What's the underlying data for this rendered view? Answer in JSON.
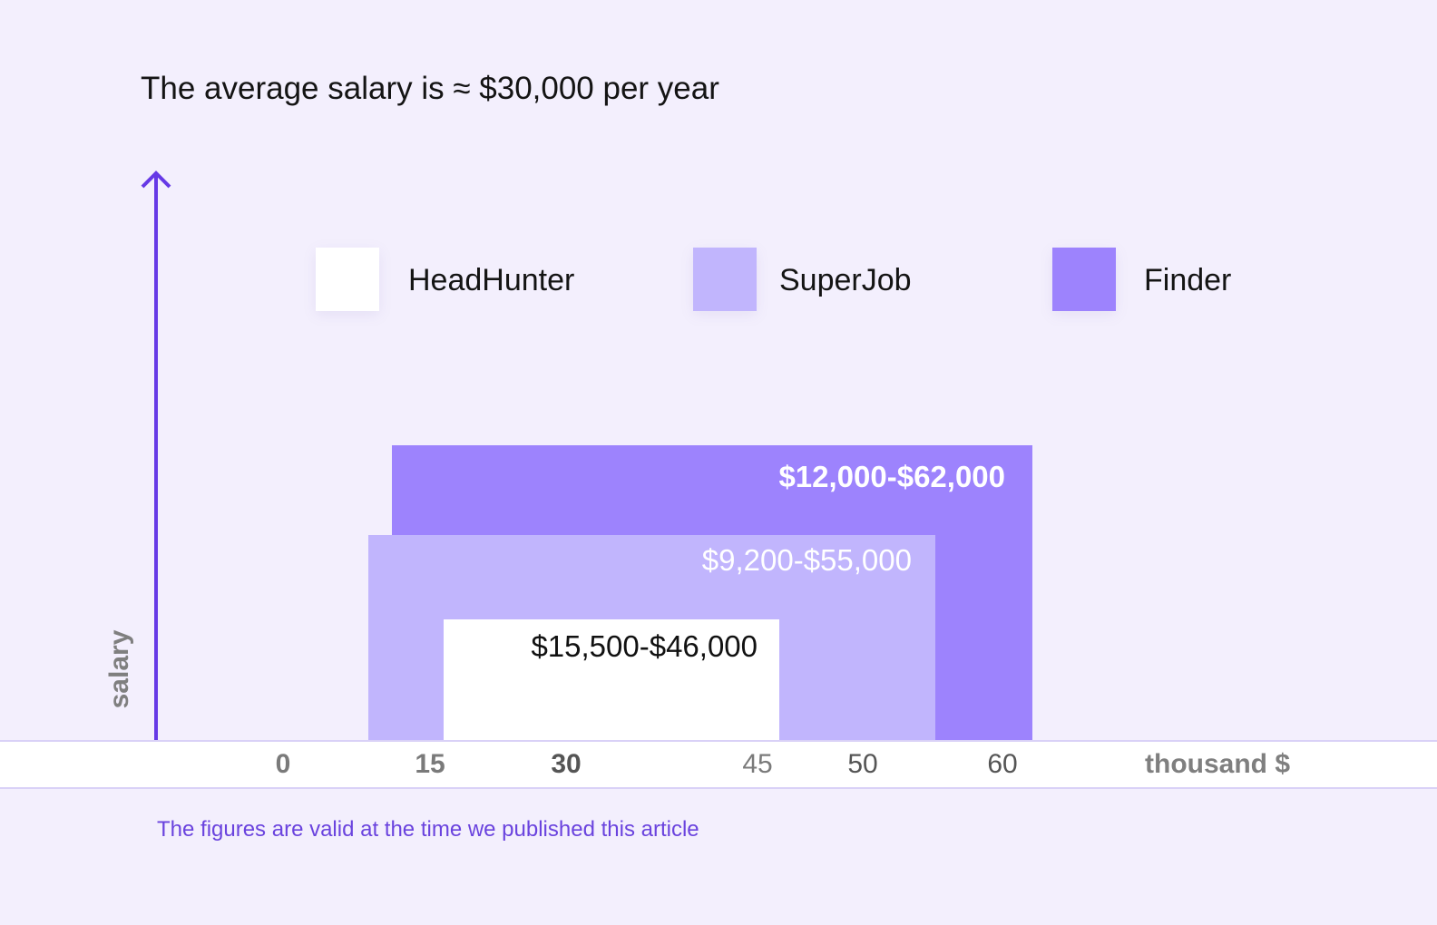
{
  "chart_data": {
    "type": "bar",
    "title": "The average salary is ≈ $30,000 per year",
    "ylabel": "salary",
    "xlabel": "thousand $",
    "x_ticks": [
      "0",
      "15",
      "30",
      "45",
      "50",
      "60"
    ],
    "legend": {
      "placement": "top",
      "entries": [
        {
          "name": "HeadHunter",
          "color": "#ffffff"
        },
        {
          "name": "SuperJob",
          "color": "#c1b5fd"
        },
        {
          "name": "Finder",
          "color": "#9d83fd"
        }
      ]
    },
    "series": [
      {
        "name": "Finder",
        "label": "$12,000-$62,000",
        "min": 12000,
        "max": 62000,
        "color": "#9d83fd",
        "label_color": "#ffffff"
      },
      {
        "name": "SuperJob",
        "label": "$9,200-$55,000",
        "min": 9200,
        "max": 55000,
        "color": "#c1b5fd",
        "label_color": "#ffffff"
      },
      {
        "name": "HeadHunter",
        "label": "$15,500-$46,000",
        "min": 15500,
        "max": 46000,
        "color": "#ffffff",
        "label_color": "#111111"
      }
    ],
    "footnote": "The figures are valid at the time we published this article"
  },
  "colors": {
    "background": "#f3effd",
    "axis_line": "#6639e6",
    "tick_gray": "#7a7a7a"
  }
}
